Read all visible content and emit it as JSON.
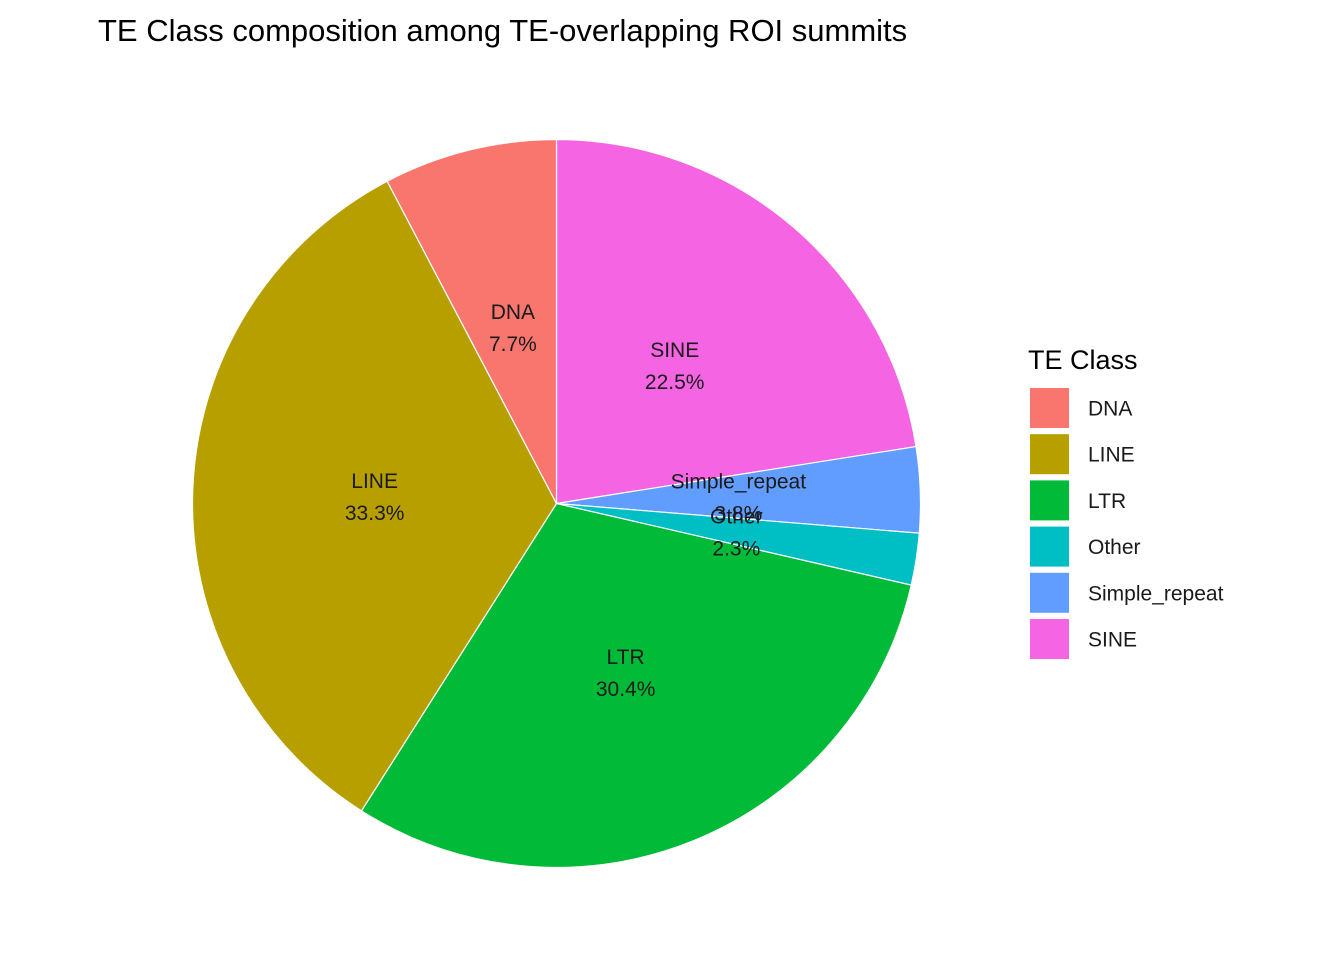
{
  "chart_data": {
    "type": "pie",
    "title": "TE Class composition among TE-overlapping ROI summits",
    "legend_title": "TE Class",
    "legend_position": "right",
    "slices": [
      {
        "name": "DNA",
        "value": 7.7,
        "label": "7.7%",
        "color": "#F8766D"
      },
      {
        "name": "LINE",
        "value": 33.3,
        "label": "33.3%",
        "color": "#B79F00"
      },
      {
        "name": "LTR",
        "value": 30.4,
        "label": "30.4%",
        "color": "#00BA38"
      },
      {
        "name": "Other",
        "value": 2.3,
        "label": "2.3%",
        "color": "#00BFC4"
      },
      {
        "name": "Simple_repeat",
        "value": 3.8,
        "label": "3.8%",
        "color": "#619CFF"
      },
      {
        "name": "SINE",
        "value": 22.5,
        "label": "22.5%",
        "color": "#F564E3"
      }
    ],
    "legend": [
      "DNA",
      "LINE",
      "LTR",
      "Other",
      "Simple_repeat",
      "SINE"
    ]
  }
}
